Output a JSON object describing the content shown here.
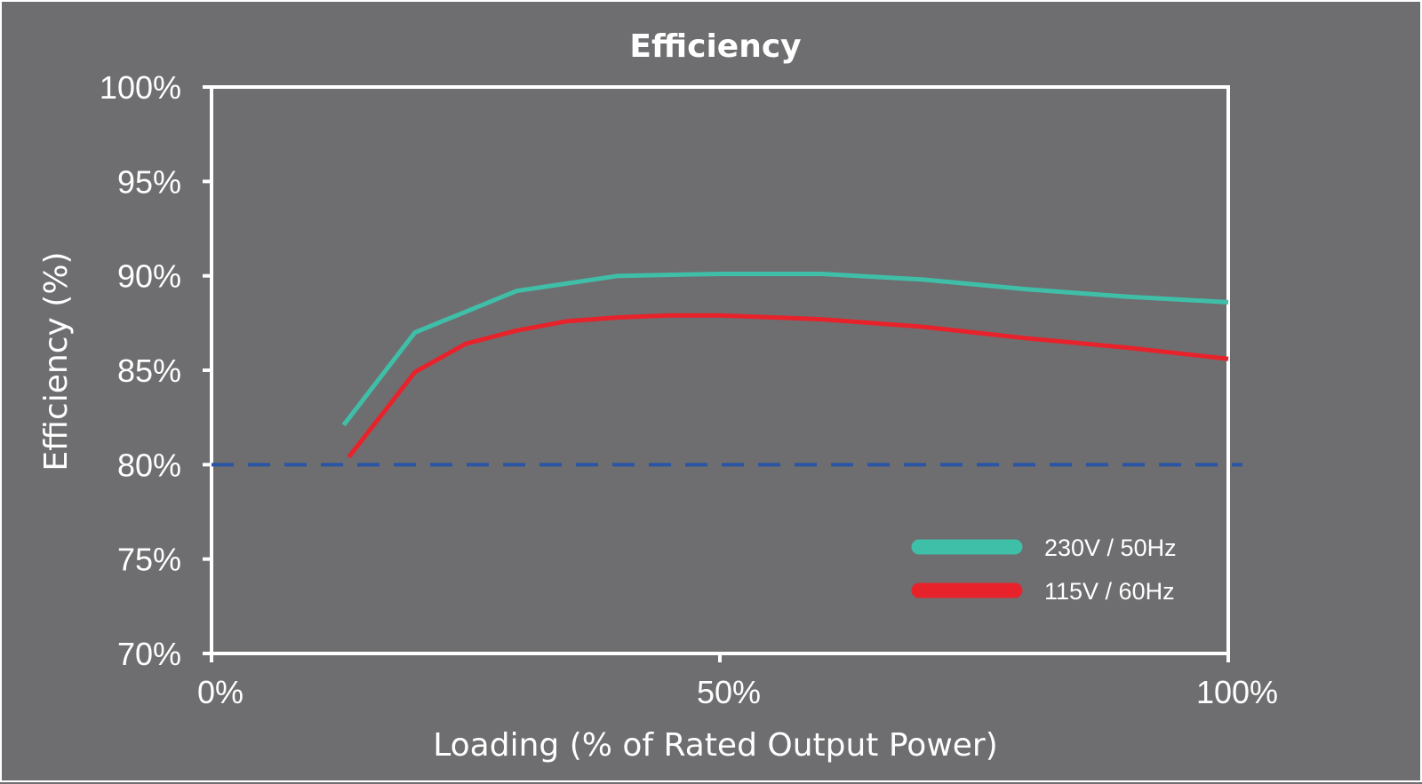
{
  "chart_data": {
    "type": "line",
    "title": "Efficiency",
    "xlabel": "Loading (% of Rated Output Power)",
    "ylabel": "Efficiency (%)",
    "xlim": [
      0,
      100
    ],
    "ylim": [
      70,
      100
    ],
    "x_ticks": [
      {
        "value": 0,
        "label": "0%"
      },
      {
        "value": 50,
        "label": "50%"
      },
      {
        "value": 100,
        "label": "100%"
      }
    ],
    "y_ticks": [
      {
        "value": 70,
        "label": "70%"
      },
      {
        "value": 75,
        "label": "75%"
      },
      {
        "value": 80,
        "label": "80%"
      },
      {
        "value": 85,
        "label": "85%"
      },
      {
        "value": 90,
        "label": "90%"
      },
      {
        "value": 95,
        "label": "95%"
      },
      {
        "value": 100,
        "label": "100%"
      }
    ],
    "grid": false,
    "legend_position": "bottom-right",
    "series": [
      {
        "name": "230V / 50Hz",
        "color": "#3fbfa8",
        "points": [
          [
            13,
            82.1
          ],
          [
            20,
            87.0
          ],
          [
            30,
            89.2
          ],
          [
            40,
            90.0
          ],
          [
            50,
            90.1
          ],
          [
            60,
            90.1
          ],
          [
            70,
            89.8
          ],
          [
            80,
            89.3
          ],
          [
            90,
            88.9
          ],
          [
            100,
            88.6
          ]
        ]
      },
      {
        "name": "115V / 60Hz",
        "color": "#e8222b",
        "points": [
          [
            13.5,
            80.4
          ],
          [
            20,
            84.9
          ],
          [
            25,
            86.4
          ],
          [
            30,
            87.1
          ],
          [
            35,
            87.6
          ],
          [
            40,
            87.8
          ],
          [
            45,
            87.9
          ],
          [
            50,
            87.9
          ],
          [
            60,
            87.7
          ],
          [
            70,
            87.3
          ],
          [
            80,
            86.7
          ],
          [
            90,
            86.2
          ],
          [
            100,
            85.6
          ]
        ]
      }
    ],
    "reference_line": {
      "y": 80,
      "color": "#2a55a4",
      "style": "dashed"
    }
  }
}
